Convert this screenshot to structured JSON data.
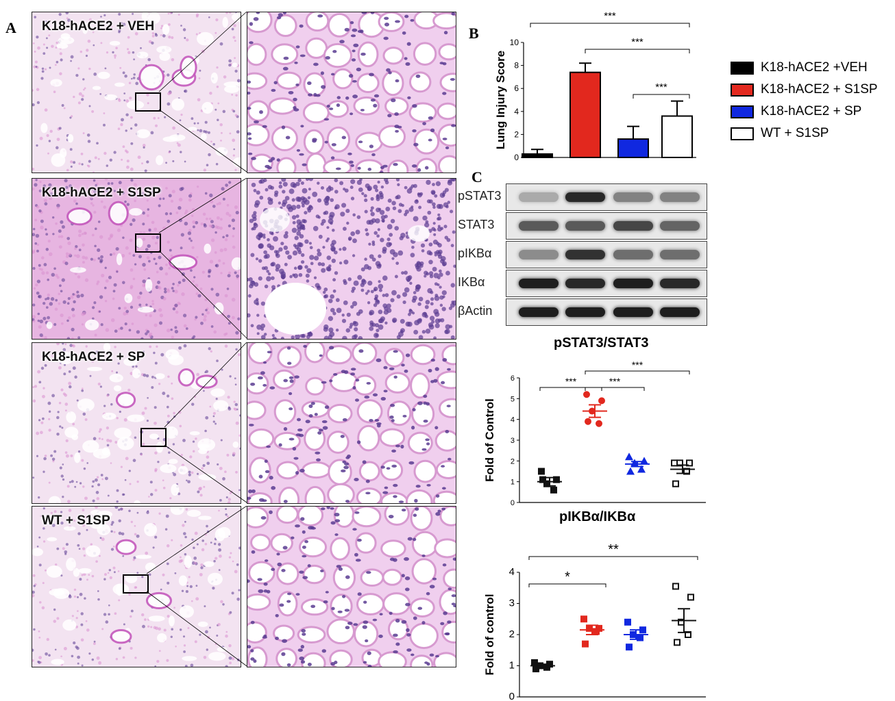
{
  "panels": {
    "a": "A",
    "b": "B",
    "c": "C"
  },
  "histology": {
    "rows": [
      {
        "label": "K18-hACE2 + VEH",
        "style": "normal"
      },
      {
        "label": "K18-hACE2 + S1SP",
        "style": "inflamed"
      },
      {
        "label": "K18-hACE2 + SP",
        "style": "normal"
      },
      {
        "label": "WT + S1SP",
        "style": "normal"
      }
    ],
    "colors": {
      "tissue": "#d98fd0",
      "nuclei": "#5b3c92",
      "background": "#f7f2f8"
    }
  },
  "legend": {
    "items": [
      {
        "label": "K18-hACE2 +VEH",
        "color": "#000000"
      },
      {
        "label": "K18-hACE2 + S1SP",
        "color": "#e2281e"
      },
      {
        "label": "K18-hACE2 + SP",
        "color": "#1028e0"
      },
      {
        "label": "WT + S1SP",
        "color": "#ffffff"
      }
    ]
  },
  "western_blot": {
    "rows": [
      {
        "label": "pSTAT3",
        "intensity": [
          0.25,
          0.9,
          0.45,
          0.45
        ]
      },
      {
        "label": "STAT3",
        "intensity": [
          0.65,
          0.65,
          0.75,
          0.6
        ]
      },
      {
        "label": "pIKBα",
        "intensity": [
          0.4,
          0.85,
          0.55,
          0.55
        ]
      },
      {
        "label": "IKBα",
        "intensity": [
          0.95,
          0.9,
          0.95,
          0.9
        ]
      },
      {
        "label": "βActin",
        "intensity": [
          0.95,
          0.95,
          0.95,
          0.95
        ]
      }
    ]
  },
  "chart_data": [
    {
      "type": "bar",
      "title": "",
      "xlabel": "",
      "ylabel": "Lung Injury Score",
      "ylim": [
        0,
        10
      ],
      "yticks": [
        "0",
        "2",
        "4",
        "6",
        "8",
        "10"
      ],
      "categories": [
        "K18-hACE2 +VEH",
        "K18-hACE2 + S1SP",
        "K18-hACE2 + SP",
        "WT + S1SP"
      ],
      "values": [
        0.3,
        7.4,
        1.6,
        3.6
      ],
      "errors": [
        0.4,
        0.8,
        1.1,
        1.3
      ],
      "colors": [
        "#000000",
        "#e2281e",
        "#1028e0",
        "#ffffff"
      ],
      "significance": [
        {
          "from": 0,
          "to": 3,
          "label": "***"
        },
        {
          "from": 1,
          "to": 3,
          "label": "***"
        },
        {
          "from": 2,
          "to": 3,
          "label": "***"
        }
      ]
    },
    {
      "type": "scatter",
      "title": "pSTAT3/STAT3",
      "xlabel": "",
      "ylabel": "Fold of Control",
      "ylim": [
        0,
        6
      ],
      "yticks": [
        "0",
        "1",
        "2",
        "3",
        "4",
        "5",
        "6"
      ],
      "groups": [
        {
          "color": "#111111",
          "marker": "square-filled",
          "mean": 1.0,
          "sem": 0.2,
          "points": [
            1.5,
            1.1,
            0.9,
            0.6,
            1.1
          ]
        },
        {
          "color": "#e2281e",
          "marker": "circle-filled",
          "mean": 4.4,
          "sem": 0.3,
          "points": [
            5.2,
            4.9,
            4.4,
            3.8,
            3.9
          ]
        },
        {
          "color": "#1028e0",
          "marker": "triangle-filled",
          "mean": 1.85,
          "sem": 0.12,
          "points": [
            2.2,
            2.0,
            1.9,
            1.6,
            1.5
          ]
        },
        {
          "color": "#111111",
          "marker": "square-open",
          "mean": 1.6,
          "sem": 0.2,
          "points": [
            1.9,
            1.9,
            1.9,
            1.5,
            0.9
          ]
        }
      ],
      "significance": [
        {
          "from": 0,
          "to": 1,
          "label": "***"
        },
        {
          "from": 1,
          "to": 2,
          "label": "***"
        },
        {
          "from": 1,
          "to": 3,
          "label": "***"
        }
      ]
    },
    {
      "type": "scatter",
      "title": "pIKBα/IKBα",
      "xlabel": "",
      "ylabel": "Fold of control",
      "ylim": [
        0,
        4
      ],
      "yticks": [
        "0",
        "1",
        "2",
        "3",
        "4"
      ],
      "groups": [
        {
          "color": "#111111",
          "marker": "square-filled",
          "mean": 1.0,
          "sem": 0.05,
          "points": [
            1.1,
            1.05,
            1.0,
            0.95,
            0.9
          ]
        },
        {
          "color": "#e2281e",
          "marker": "square-filled",
          "mean": 2.15,
          "sem": 0.15,
          "points": [
            2.5,
            2.2,
            2.2,
            2.1,
            1.7
          ]
        },
        {
          "color": "#1028e0",
          "marker": "square-filled",
          "mean": 2.0,
          "sem": 0.15,
          "points": [
            2.4,
            2.15,
            2.0,
            1.9,
            1.6
          ]
        },
        {
          "color": "#111111",
          "marker": "square-open",
          "mean": 2.45,
          "sem": 0.38,
          "points": [
            3.55,
            3.2,
            2.4,
            2.0,
            1.75
          ]
        }
      ],
      "significance": [
        {
          "from": 0,
          "to": 1,
          "label": "*"
        },
        {
          "from": 0,
          "to": 3,
          "label": "**"
        }
      ]
    }
  ]
}
